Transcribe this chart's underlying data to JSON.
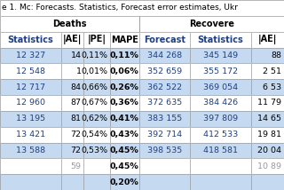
{
  "title": "e 1. Mc: Forecasts. Statistics, Forecast error estimates, Ukr",
  "header_group1": "Deaths",
  "header_group2": "Recovere",
  "col_headers": [
    "Statistics",
    "|AE|",
    "|PE|",
    "MAPE",
    "Forecast",
    "Statistics",
    "|AE|"
  ],
  "rows": [
    [
      "12 327",
      "14",
      "0,11%",
      "0,11%",
      "344 268",
      "345 149",
      "88"
    ],
    [
      "12 548",
      "1",
      "0,01%",
      "0,06%",
      "352 659",
      "355 172",
      "2 51"
    ],
    [
      "12 717",
      "84",
      "0,66%",
      "0,26%",
      "362 522",
      "369 054",
      "6 53"
    ],
    [
      "12 960",
      "87",
      "0,67%",
      "0,36%",
      "372 635",
      "384 426",
      "11 79"
    ],
    [
      "13 195",
      "81",
      "0,62%",
      "0,41%",
      "383 155",
      "397 809",
      "14 65"
    ],
    [
      "13 421",
      "72",
      "0,54%",
      "0,43%",
      "392 714",
      "412 533",
      "19 81"
    ],
    [
      "13 588",
      "72",
      "0,53%",
      "0,45%",
      "398 535",
      "418 581",
      "20 04"
    ]
  ],
  "footer_row1": [
    "",
    "59",
    "",
    "0,45%",
    "",
    "",
    "10 89"
  ],
  "footer_row2": [
    "",
    "",
    "",
    "0,20%",
    "",
    "",
    ""
  ],
  "col_widths_raw": [
    1.75,
    0.65,
    0.75,
    0.85,
    1.45,
    1.75,
    0.95
  ],
  "blue_text_cols": [
    0,
    4,
    5
  ],
  "color_blue": "#1F3F80",
  "color_dark": "#000000",
  "color_gray": "#999999",
  "border_color": "#999999",
  "title_color": "#000000",
  "title_fontsize": 6.5,
  "cell_fontsize": 6.8,
  "header_fontsize": 7.0,
  "row_bgs": [
    "#C5D9F1",
    "#FFFFFF",
    "#C5D9F1",
    "#FFFFFF",
    "#C5D9F1",
    "#FFFFFF",
    "#C5D9F1"
  ],
  "footer1_bg": "#FFFFFF",
  "footer2_bg": "#C5D9F1",
  "header_bg": "#FFFFFF",
  "title_bg": "#FFFFFF"
}
